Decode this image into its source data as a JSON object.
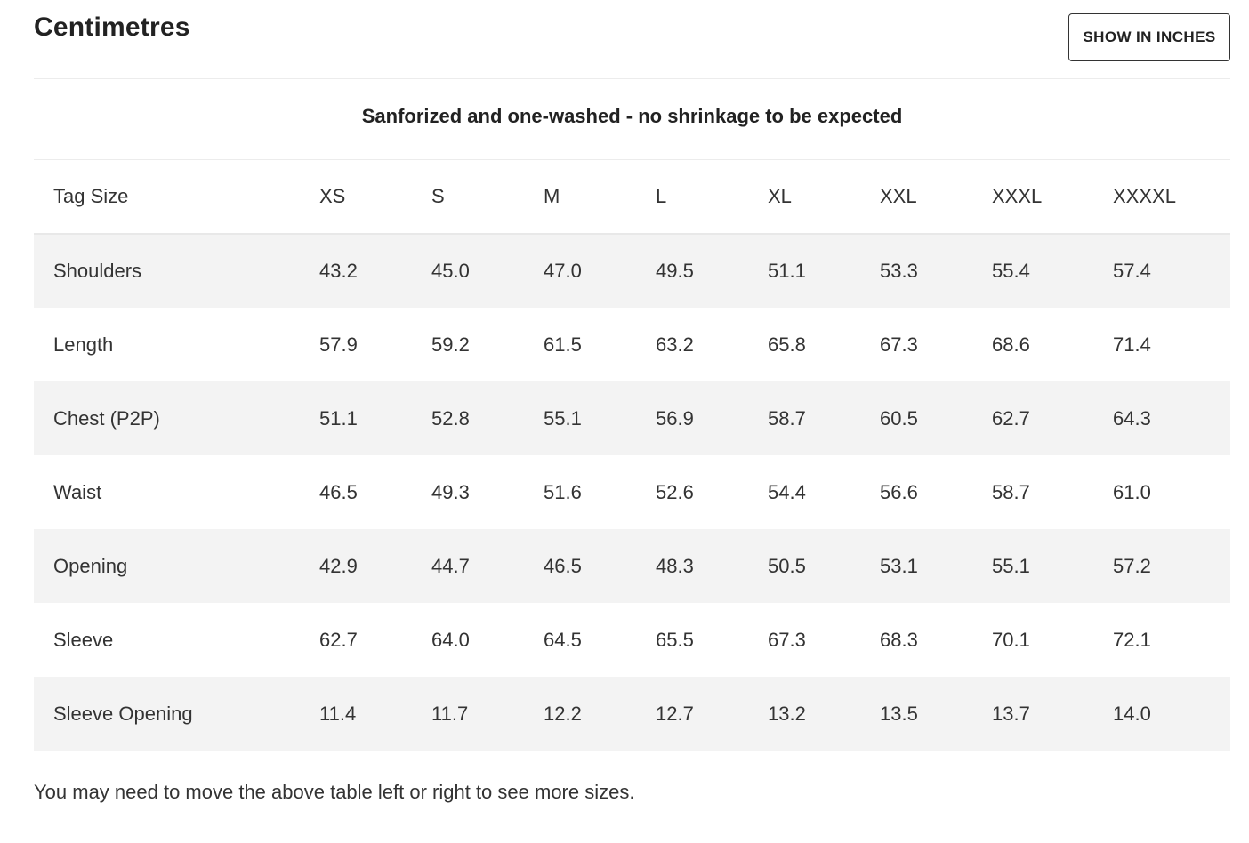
{
  "header": {
    "title": "Centimetres",
    "toggle_label": "SHOW IN INCHES"
  },
  "note": "Sanforized and one-washed - no shrinkage to be expected",
  "table": {
    "label_header": "Tag Size",
    "sizes": [
      "XS",
      "S",
      "M",
      "L",
      "XL",
      "XXL",
      "XXXL",
      "XXXXL"
    ],
    "rows": [
      {
        "label": "Shoulders",
        "values": [
          "43.2",
          "45.0",
          "47.0",
          "49.5",
          "51.1",
          "53.3",
          "55.4",
          "57.4"
        ]
      },
      {
        "label": "Length",
        "values": [
          "57.9",
          "59.2",
          "61.5",
          "63.2",
          "65.8",
          "67.3",
          "68.6",
          "71.4"
        ]
      },
      {
        "label": "Chest (P2P)",
        "values": [
          "51.1",
          "52.8",
          "55.1",
          "56.9",
          "58.7",
          "60.5",
          "62.7",
          "64.3"
        ]
      },
      {
        "label": "Waist",
        "values": [
          "46.5",
          "49.3",
          "51.6",
          "52.6",
          "54.4",
          "56.6",
          "58.7",
          "61.0"
        ]
      },
      {
        "label": "Opening",
        "values": [
          "42.9",
          "44.7",
          "46.5",
          "48.3",
          "50.5",
          "53.1",
          "55.1",
          "57.2"
        ]
      },
      {
        "label": "Sleeve",
        "values": [
          "62.7",
          "64.0",
          "64.5",
          "65.5",
          "67.3",
          "68.3",
          "70.1",
          "72.1"
        ]
      },
      {
        "label": "Sleeve Opening",
        "values": [
          "11.4",
          "11.7",
          "12.2",
          "12.7",
          "13.2",
          "13.5",
          "13.7",
          "14.0"
        ]
      }
    ]
  },
  "footer_note": "You may need to move the above table left or right to see more sizes.",
  "colors": {
    "text": "#222222",
    "row_shade": "#f3f3f3",
    "divider": "#ececec",
    "button_border": "#333333"
  }
}
